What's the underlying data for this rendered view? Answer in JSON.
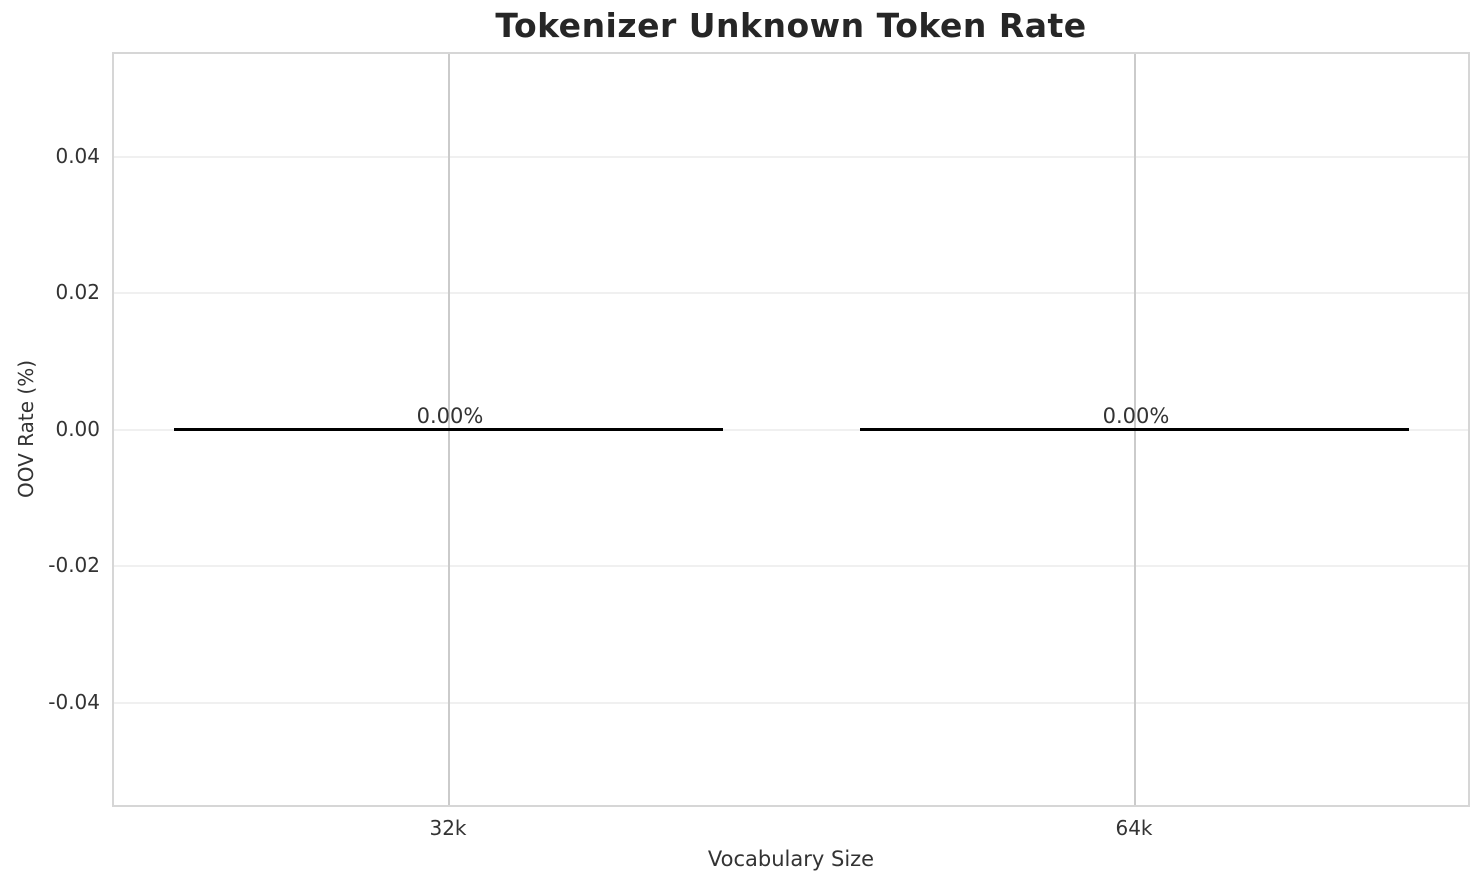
{
  "chart_data": {
    "type": "bar",
    "title": "Tokenizer Unknown Token Rate",
    "xlabel": "Vocabulary Size",
    "ylabel": "OOV Rate (%)",
    "categories": [
      "32k",
      "64k"
    ],
    "values": [
      0.0,
      0.0
    ],
    "bar_labels": [
      "0.00%",
      "0.00%"
    ],
    "ytick_labels": [
      "0.04",
      "0.02",
      "0.00",
      "-0.02",
      "-0.04"
    ],
    "ytick_values": [
      0.04,
      0.02,
      0.0,
      -0.02,
      -0.04
    ],
    "ylim": [
      -0.055,
      0.055
    ],
    "bar_width_fraction": 0.8,
    "grid": true,
    "legend_position": "none",
    "colors": {
      "bar": "#000000",
      "title_text": "#262626",
      "label_text": "#333333",
      "horizontal_grid": "#f0f0f0",
      "vertical_grid": "#cbcbcb",
      "plot_border": "#d6d6d6",
      "background": "#ffffff"
    }
  }
}
